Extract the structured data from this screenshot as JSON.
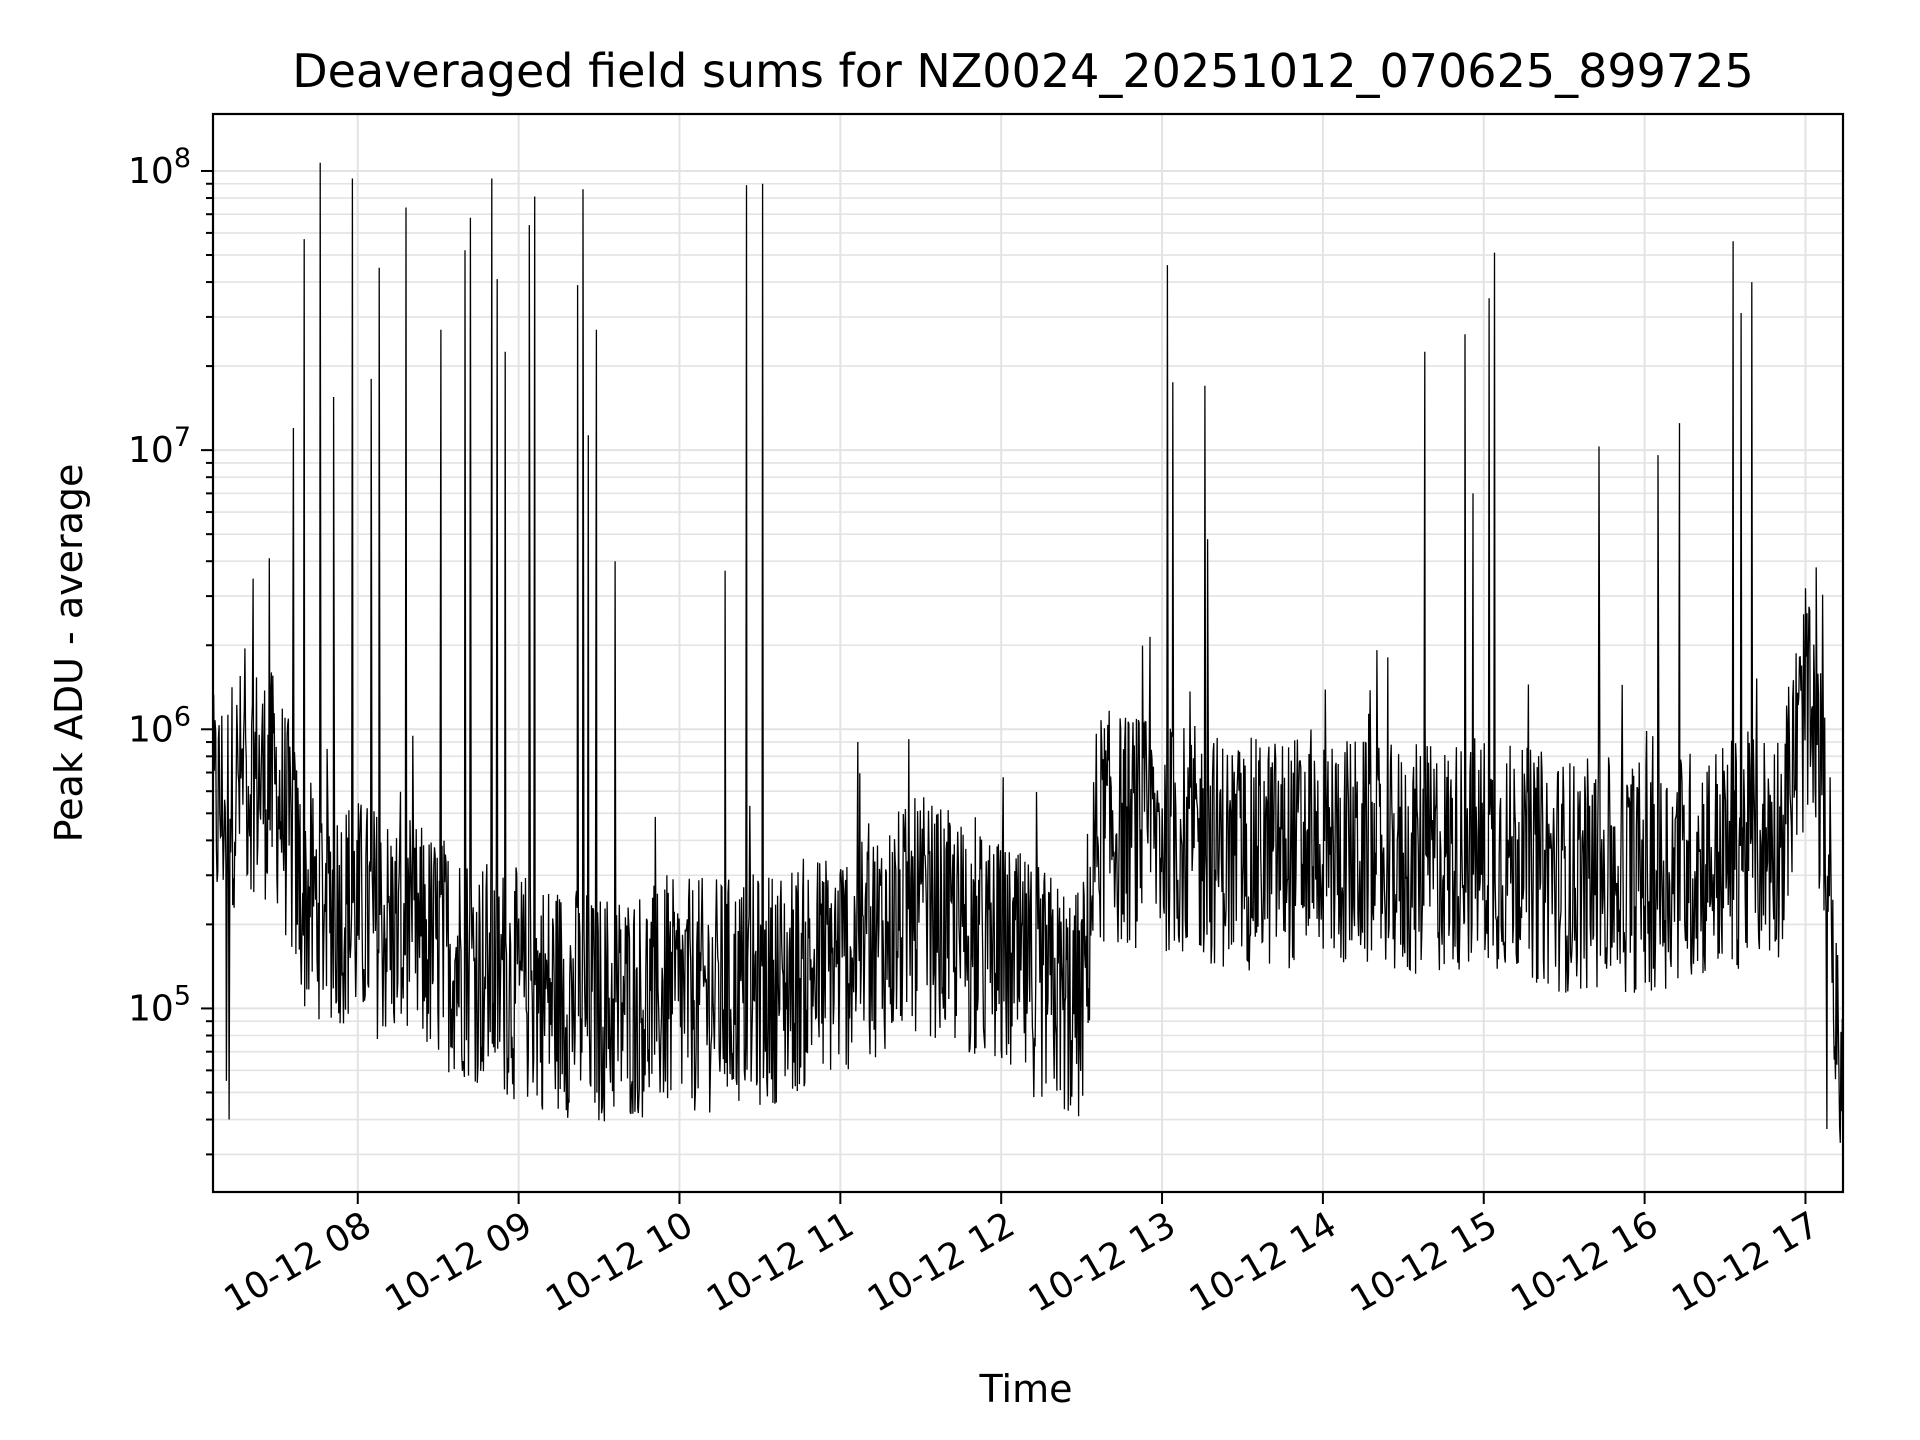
{
  "chart_data": {
    "type": "line",
    "title": "Deaveraged field sums for NZ0024_20251012_070625_899725",
    "xlabel": "Time",
    "ylabel": "Peak ADU - average",
    "yscale": "log",
    "grid": true,
    "line_color": "#000000",
    "x_ticks": [
      "10-12 08",
      "10-12 09",
      "10-12 10",
      "10-12 11",
      "10-12 12",
      "10-12 13",
      "10-12 14",
      "10-12 15",
      "10-12 16",
      "10-12 17"
    ],
    "y_ticks": [
      {
        "base": "10",
        "exp": "5",
        "value": 100000
      },
      {
        "base": "10",
        "exp": "6",
        "value": 1000000
      },
      {
        "base": "10",
        "exp": "7",
        "value": 10000000
      },
      {
        "base": "10",
        "exp": "8",
        "value": 100000000
      }
    ],
    "xlim": [
      "2025-10-12 07:06",
      "2025-10-12 17:14"
    ],
    "ylim": [
      22000,
      160000000
    ],
    "baseline": [
      [
        "2025-10-12 07:06",
        500000
      ],
      [
        "2025-10-12 07:20",
        700000
      ],
      [
        "2025-10-12 07:30",
        600000
      ],
      [
        "2025-10-12 07:40",
        250000
      ],
      [
        "2025-10-12 08:00",
        220000
      ],
      [
        "2025-10-12 08:20",
        180000
      ],
      [
        "2025-10-12 08:45",
        140000
      ],
      [
        "2025-10-12 09:00",
        120000
      ],
      [
        "2025-10-12 09:30",
        100000
      ],
      [
        "2025-10-12 10:00",
        110000
      ],
      [
        "2025-10-12 10:30",
        115000
      ],
      [
        "2025-10-12 11:00",
        150000
      ],
      [
        "2025-10-12 11:30",
        220000
      ],
      [
        "2025-10-12 12:00",
        150000
      ],
      [
        "2025-10-12 12:30",
        100000
      ],
      [
        "2025-10-12 12:36",
        450000
      ],
      [
        "2025-10-12 13:00",
        420000
      ],
      [
        "2025-10-12 13:30",
        350000
      ],
      [
        "2025-10-12 14:00",
        380000
      ],
      [
        "2025-10-12 14:30",
        330000
      ],
      [
        "2025-10-12 15:00",
        370000
      ],
      [
        "2025-10-12 15:30",
        300000
      ],
      [
        "2025-10-12 16:00",
        300000
      ],
      [
        "2025-10-12 16:30",
        350000
      ],
      [
        "2025-10-12 16:50",
        400000
      ],
      [
        "2025-10-12 17:00",
        1200000
      ],
      [
        "2025-10-12 17:08",
        500000
      ],
      [
        "2025-10-12 17:12",
        60000
      ],
      [
        "2025-10-12 17:14",
        50000
      ]
    ],
    "spikes": [
      [
        "2025-10-12 07:27",
        4100000
      ],
      [
        "2025-10-12 07:36",
        12000000
      ],
      [
        "2025-10-12 07:40",
        57000000
      ],
      [
        "2025-10-12 07:46",
        107000000
      ],
      [
        "2025-10-12 07:51",
        15500000
      ],
      [
        "2025-10-12 07:58",
        94000000
      ],
      [
        "2025-10-12 08:05",
        18000000
      ],
      [
        "2025-10-12 08:08",
        45000000
      ],
      [
        "2025-10-12 08:18",
        74000000
      ],
      [
        "2025-10-12 08:31",
        27000000
      ],
      [
        "2025-10-12 08:40",
        52000000
      ],
      [
        "2025-10-12 08:42",
        68000000
      ],
      [
        "2025-10-12 08:50",
        94000000
      ],
      [
        "2025-10-12 08:52",
        41000000
      ],
      [
        "2025-10-12 08:55",
        22500000
      ],
      [
        "2025-10-12 09:04",
        64000000
      ],
      [
        "2025-10-12 09:06",
        81000000
      ],
      [
        "2025-10-12 09:22",
        39000000
      ],
      [
        "2025-10-12 09:24",
        86000000
      ],
      [
        "2025-10-12 09:26",
        11300000
      ],
      [
        "2025-10-12 09:29",
        27000000
      ],
      [
        "2025-10-12 09:36",
        4000000
      ],
      [
        "2025-10-12 10:17",
        3700000
      ],
      [
        "2025-10-12 10:25",
        89000000
      ],
      [
        "2025-10-12 10:31",
        90000000
      ],
      [
        "2025-10-12 13:02",
        46000000
      ],
      [
        "2025-10-12 13:04",
        17500000
      ],
      [
        "2025-10-12 13:16",
        17000000
      ],
      [
        "2025-10-12 13:17",
        4800000
      ],
      [
        "2025-10-12 14:38",
        22500000
      ],
      [
        "2025-10-12 14:53",
        26000000
      ],
      [
        "2025-10-12 14:56",
        7000000
      ],
      [
        "2025-10-12 15:02",
        35000000
      ],
      [
        "2025-10-12 15:04",
        51000000
      ],
      [
        "2025-10-12 15:43",
        10300000
      ],
      [
        "2025-10-12 16:05",
        9600000
      ],
      [
        "2025-10-12 16:13",
        12500000
      ],
      [
        "2025-10-12 16:33",
        56000000
      ],
      [
        "2025-10-12 16:36",
        31000000
      ],
      [
        "2025-10-12 16:40",
        40000000
      ],
      [
        "2025-10-12 17:00",
        3200000
      ],
      [
        "2025-10-12 17:04",
        3800000
      ]
    ],
    "dips": [
      [
        "2025-10-12 07:11",
        55000
      ],
      [
        "2025-10-12 07:12",
        40000
      ],
      [
        "2025-10-12 09:45",
        52000
      ],
      [
        "2025-10-12 12:25",
        43000
      ],
      [
        "2025-10-12 17:08",
        37000
      ],
      [
        "2025-10-12 17:13",
        33000
      ]
    ]
  }
}
